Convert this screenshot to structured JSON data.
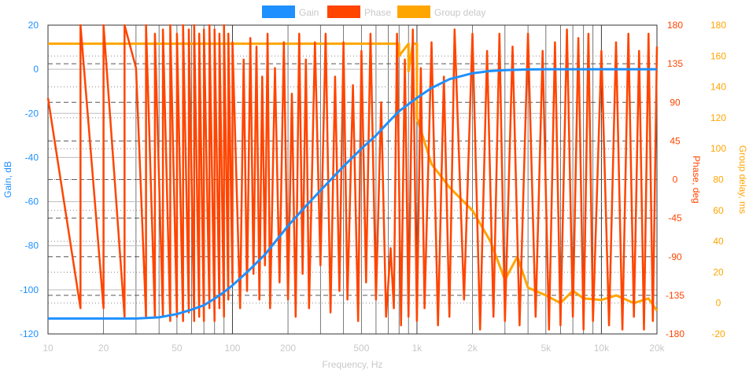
{
  "chart_data": {
    "type": "line",
    "legend": {
      "placement": "top-center",
      "items": [
        {
          "label": "Gain",
          "color": "#1e90ff"
        },
        {
          "label": "Phase",
          "color": "#ff4500"
        },
        {
          "label": "Group delay",
          "color": "#ffa500"
        }
      ]
    },
    "x_axis": {
      "title": "Frequency, Hz",
      "scale": "log",
      "range": [
        10,
        20000
      ],
      "ticks": [
        {
          "value": 10,
          "label": "10"
        },
        {
          "value": 20,
          "label": "20"
        },
        {
          "value": 50,
          "label": "50"
        },
        {
          "value": 100,
          "label": "100"
        },
        {
          "value": 200,
          "label": "200"
        },
        {
          "value": 500,
          "label": "500"
        },
        {
          "value": 1000,
          "label": "1k"
        },
        {
          "value": 2000,
          "label": "2k"
        },
        {
          "value": 5000,
          "label": "5k"
        },
        {
          "value": 10000,
          "label": "10k"
        },
        {
          "value": 20000,
          "label": "20k"
        }
      ],
      "color": "#c8c8c8"
    },
    "y_left": {
      "title": "Gain, dB",
      "range": [
        -120,
        20
      ],
      "ticks": [
        {
          "value": 20,
          "label": "20"
        },
        {
          "value": 0,
          "label": "0"
        },
        {
          "value": -20,
          "label": "-20"
        },
        {
          "value": -40,
          "label": "-40"
        },
        {
          "value": -60,
          "label": "-60"
        },
        {
          "value": -80,
          "label": "-80"
        },
        {
          "value": -100,
          "label": "-100"
        },
        {
          "value": -120,
          "label": "-120"
        }
      ],
      "color": "#1e90ff"
    },
    "y_right_phase": {
      "title": "Phase, deg",
      "range": [
        -180,
        180
      ],
      "ticks": [
        {
          "value": 180,
          "label": "180"
        },
        {
          "value": 135,
          "label": "135"
        },
        {
          "value": 90,
          "label": "90"
        },
        {
          "value": 45,
          "label": "45"
        },
        {
          "value": 0,
          "label": "0"
        },
        {
          "value": -45,
          "label": "-45"
        },
        {
          "value": -90,
          "label": "-90"
        },
        {
          "value": -135,
          "label": "-135"
        },
        {
          "value": -180,
          "label": "-180"
        }
      ],
      "color": "#ff4500"
    },
    "y_right_delay": {
      "title": "Group delay, ms",
      "range": [
        -20,
        180
      ],
      "ticks": [
        {
          "value": 180,
          "label": "180"
        },
        {
          "value": 160,
          "label": "160"
        },
        {
          "value": 140,
          "label": "140"
        },
        {
          "value": 120,
          "label": "120"
        },
        {
          "value": 100,
          "label": "100"
        },
        {
          "value": 80,
          "label": "80"
        },
        {
          "value": 60,
          "label": "60"
        },
        {
          "value": 40,
          "label": "40"
        },
        {
          "value": 20,
          "label": "20"
        },
        {
          "value": 0,
          "label": "0"
        },
        {
          "value": -20,
          "label": "-20"
        }
      ],
      "color": "#ffa500"
    },
    "grid": true,
    "series": [
      {
        "name": "Gain",
        "axis": "left",
        "x": [
          10,
          20,
          30,
          40,
          50,
          60,
          70,
          80,
          90,
          100,
          120,
          150,
          200,
          250,
          300,
          400,
          500,
          600,
          700,
          800,
          1000,
          1200,
          1500,
          2000,
          2500,
          3000,
          4000,
          5000,
          7000,
          10000,
          15000,
          20000
        ],
        "values": [
          -113,
          -113,
          -113,
          -112.5,
          -111,
          -109,
          -107,
          -104,
          -101,
          -98,
          -92,
          -84,
          -71,
          -62,
          -55,
          -44,
          -36,
          -30,
          -24,
          -19,
          -13,
          -8.5,
          -4.5,
          -1.8,
          -0.8,
          -0.4,
          -0.1,
          0,
          0,
          0,
          0,
          0
        ]
      },
      {
        "name": "Phase",
        "axis": "phase",
        "x": [
          10,
          15,
          15,
          20,
          20,
          26,
          26,
          30,
          34,
          34,
          38,
          38,
          42,
          42,
          46,
          46,
          50,
          50,
          54,
          54,
          58,
          58,
          62,
          62,
          66,
          66,
          70,
          70,
          75,
          75,
          80,
          80,
          85,
          85,
          90,
          90,
          95,
          95,
          100,
          100,
          110,
          115,
          120,
          125,
          130,
          135,
          140,
          145,
          150,
          155,
          160,
          170,
          180,
          190,
          200,
          210,
          220,
          230,
          240,
          250,
          260,
          280,
          300,
          320,
          340,
          360,
          380,
          400,
          420,
          450,
          480,
          500,
          530,
          560,
          600,
          640,
          680,
          720,
          750,
          780,
          820,
          860,
          900,
          950,
          1000,
          1050,
          1100,
          1200,
          1300,
          1400,
          1500,
          1600,
          1800,
          2000,
          2200,
          2400,
          2600,
          2800,
          3000,
          3300,
          3600,
          4000,
          4400,
          4800,
          5200,
          5600,
          6000,
          6500,
          7000,
          7500,
          8000,
          8500,
          9000,
          10000,
          11000,
          12000,
          13000,
          14000,
          15000,
          16000,
          17000,
          18000,
          19000,
          20000
        ],
        "values": [
          95,
          -150,
          180,
          -150,
          180,
          -160,
          180,
          130,
          -160,
          180,
          -160,
          170,
          -160,
          175,
          -165,
          180,
          -160,
          170,
          -165,
          180,
          -155,
          175,
          -165,
          180,
          -160,
          170,
          -165,
          175,
          -150,
          180,
          -165,
          175,
          -150,
          170,
          -160,
          180,
          -140,
          170,
          -120,
          160,
          -150,
          140,
          -130,
          165,
          -110,
          155,
          -140,
          120,
          -100,
          170,
          -150,
          130,
          -120,
          160,
          -140,
          100,
          -160,
          170,
          -110,
          140,
          -150,
          160,
          -100,
          170,
          -155,
          120,
          -130,
          160,
          -140,
          110,
          -165,
          150,
          -120,
          170,
          -140,
          90,
          -160,
          -80,
          -150,
          170,
          -170,
          140,
          -160,
          175,
          -165,
          130,
          -150,
          160,
          -170,
          120,
          -160,
          175,
          -140,
          170,
          -175,
          150,
          -160,
          170,
          -165,
          155,
          -170,
          170,
          -160,
          150,
          -175,
          160,
          -170,
          175,
          -160,
          165,
          -175,
          170,
          -165,
          150,
          -170,
          160,
          -175,
          170,
          -160,
          150,
          -175,
          170,
          -165,
          155
        ]
      },
      {
        "name": "Group delay",
        "axis": "delay",
        "x": [
          10,
          100,
          500,
          700,
          700,
          800,
          800,
          900,
          900,
          950,
          1000,
          1000,
          1200,
          1500,
          2000,
          2500,
          3000,
          3500,
          4000,
          5000,
          6000,
          7000,
          8000,
          10000,
          12000,
          15000,
          18000,
          20000
        ],
        "values": [
          168,
          168,
          168,
          168,
          168,
          168,
          160,
          168,
          150,
          168,
          168,
          120,
          90,
          75,
          60,
          40,
          15,
          30,
          10,
          5,
          0,
          8,
          3,
          2,
          5,
          0,
          3,
          -5
        ]
      }
    ]
  }
}
